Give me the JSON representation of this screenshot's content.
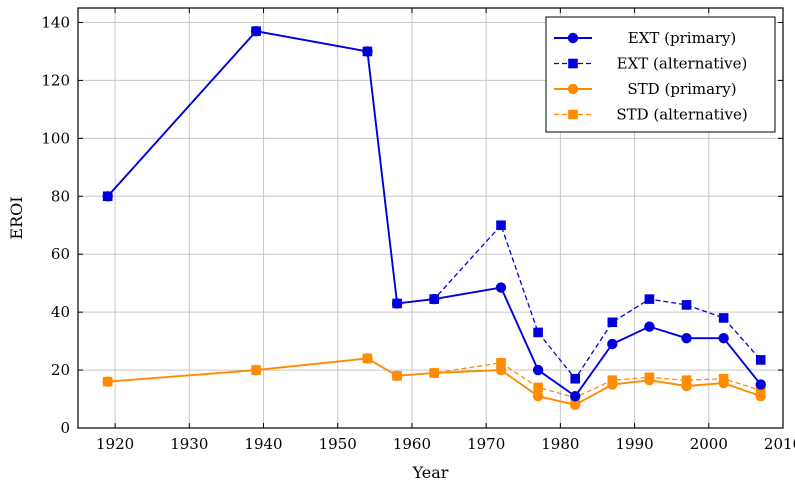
{
  "chart_data": {
    "type": "line",
    "xlabel": "Year",
    "ylabel": "EROI",
    "xlim": [
      1915,
      2010
    ],
    "ylim": [
      0,
      145
    ],
    "x_ticks": [
      1920,
      1930,
      1940,
      1950,
      1960,
      1970,
      1980,
      1990,
      2000,
      2010
    ],
    "y_ticks": [
      0,
      20,
      40,
      60,
      80,
      100,
      120,
      140
    ],
    "grid": true,
    "legend_position": "top-right",
    "series": [
      {
        "name": "EXT (primary)",
        "color": "#0000dd",
        "style": "solid",
        "marker": "circle",
        "x": [
          1919,
          1939,
          1954,
          1958,
          1963,
          1972,
          1977,
          1982,
          1987,
          1992,
          1997,
          2002,
          2007
        ],
        "y": [
          80,
          137,
          130,
          43,
          44.5,
          48.5,
          20,
          11,
          29,
          35,
          31,
          31,
          15
        ]
      },
      {
        "name": "EXT (alternative)",
        "color": "#0000dd",
        "style": "dashed",
        "marker": "square",
        "x": [
          1919,
          1939,
          1954,
          1958,
          1963,
          1972,
          1977,
          1982,
          1987,
          1992,
          1997,
          2002,
          2007
        ],
        "y": [
          80,
          137,
          130,
          43,
          44.5,
          70,
          33,
          17,
          36.5,
          44.5,
          42.5,
          38,
          23.5
        ]
      },
      {
        "name": "STD (primary)",
        "color": "#ff8c00",
        "style": "solid",
        "marker": "circle",
        "x": [
          1919,
          1939,
          1954,
          1958,
          1963,
          1972,
          1977,
          1982,
          1987,
          1992,
          1997,
          2002,
          2007
        ],
        "y": [
          16,
          20,
          24,
          18,
          19,
          20,
          11,
          8,
          15,
          16.5,
          14.5,
          15.5,
          11
        ]
      },
      {
        "name": "STD (alternative)",
        "color": "#ff8c00",
        "style": "dashed",
        "marker": "square",
        "x": [
          1919,
          1939,
          1954,
          1958,
          1963,
          1972,
          1977,
          1982,
          1987,
          1992,
          1997,
          2002,
          2007
        ],
        "y": [
          16,
          20,
          24,
          18,
          19,
          22.5,
          14,
          10.5,
          16.5,
          17.5,
          16.5,
          17,
          13
        ]
      }
    ]
  }
}
